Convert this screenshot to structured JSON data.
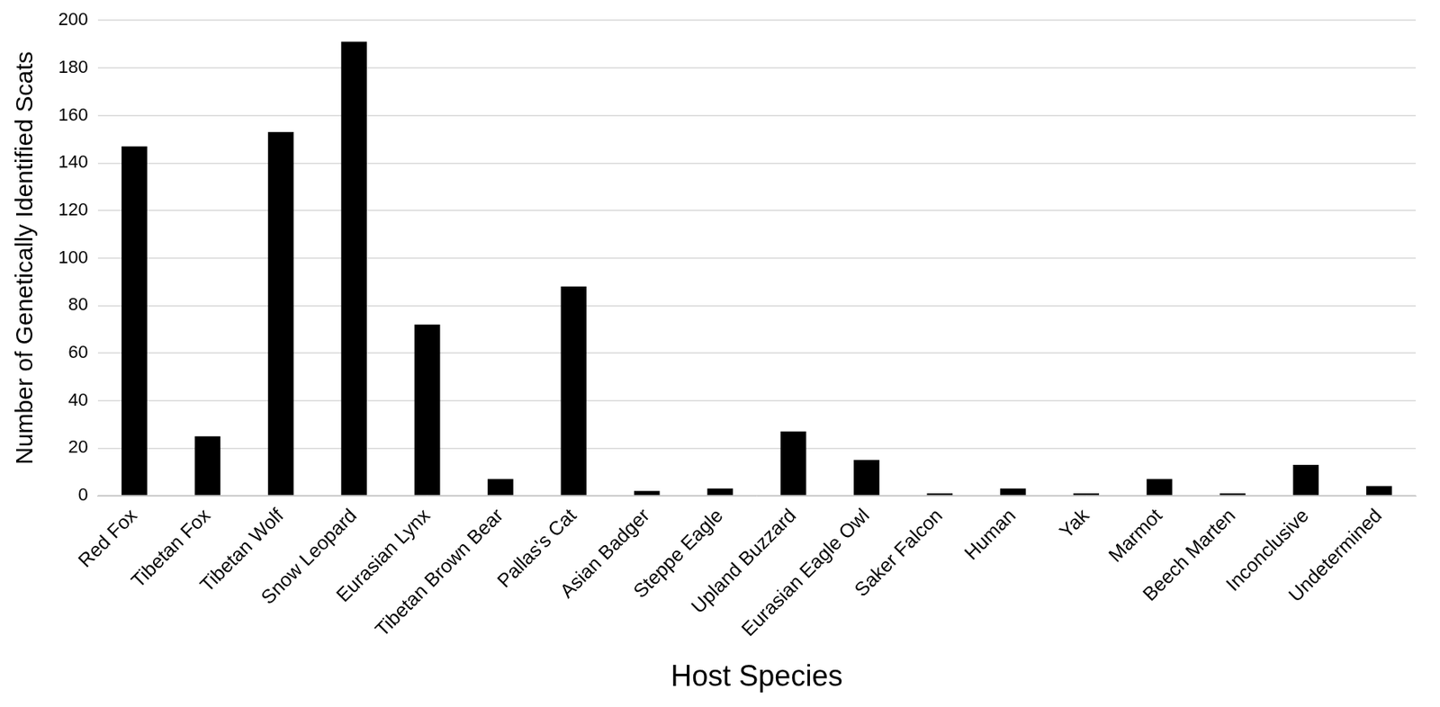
{
  "chart_data": {
    "type": "bar",
    "x_label": "Host Species",
    "y_label": "Number of Genetically Identified Scats",
    "categories": [
      "Red Fox",
      "Tibetan Fox",
      "Tibetan Wolf",
      "Snow Leopard",
      "Eurasian Lynx",
      "Tibetan Brown Bear",
      "Pallas's Cat",
      "Asian Badger",
      "Steppe Eagle",
      "Upland Buzzard",
      "Eurasian Eagle Owl",
      "Saker Falcon",
      "Human",
      "Yak",
      "Marmot",
      "Beech Marten",
      "Inconclusive",
      "Undetermined"
    ],
    "values": [
      147,
      25,
      153,
      191,
      72,
      7,
      88,
      2,
      3,
      27,
      15,
      1,
      3,
      1,
      7,
      1,
      13,
      4
    ],
    "color": "#000000",
    "ylim": [
      0,
      200
    ],
    "yticks": [
      0,
      20,
      40,
      60,
      80,
      100,
      120,
      140,
      160,
      180,
      200
    ],
    "grid": true
  }
}
